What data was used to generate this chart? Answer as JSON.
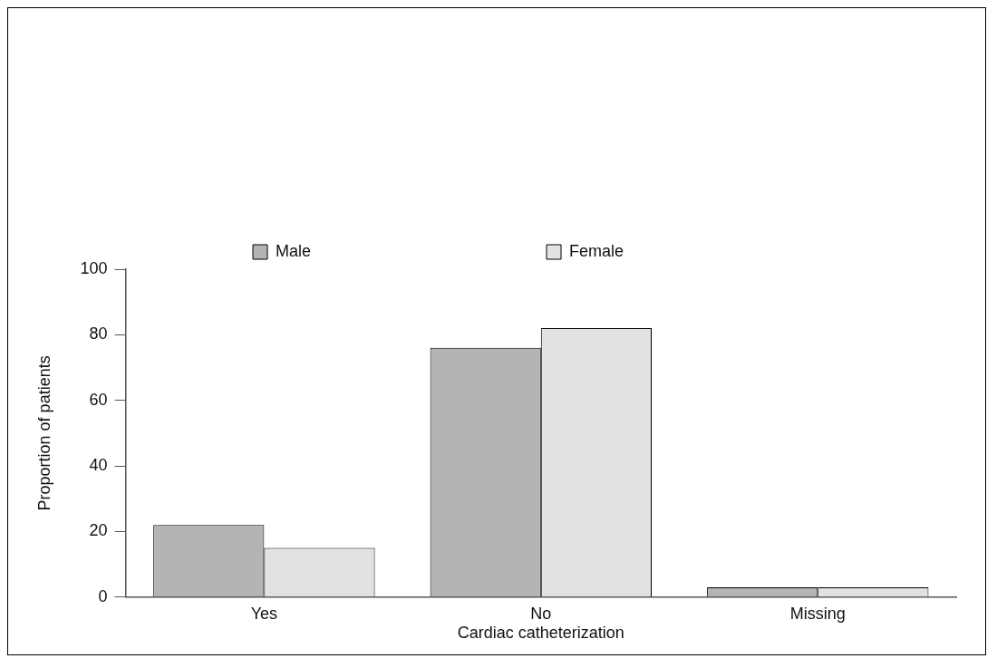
{
  "chart_data": {
    "type": "bar",
    "xlabel": "Cardiac catheterization",
    "ylabel": "Proportion of patients",
    "categories": [
      "Yes",
      "No",
      "Missing"
    ],
    "series": [
      {
        "name": "Male",
        "color": "#b4b4b4",
        "values": [
          22,
          76,
          3
        ]
      },
      {
        "name": "Female",
        "color": "#e2e2e2",
        "values": [
          15,
          82,
          3
        ]
      }
    ],
    "ylim": [
      0,
      100
    ],
    "yticks": [
      0,
      20,
      40,
      60,
      80,
      100
    ],
    "grid": false,
    "legend": "top"
  }
}
